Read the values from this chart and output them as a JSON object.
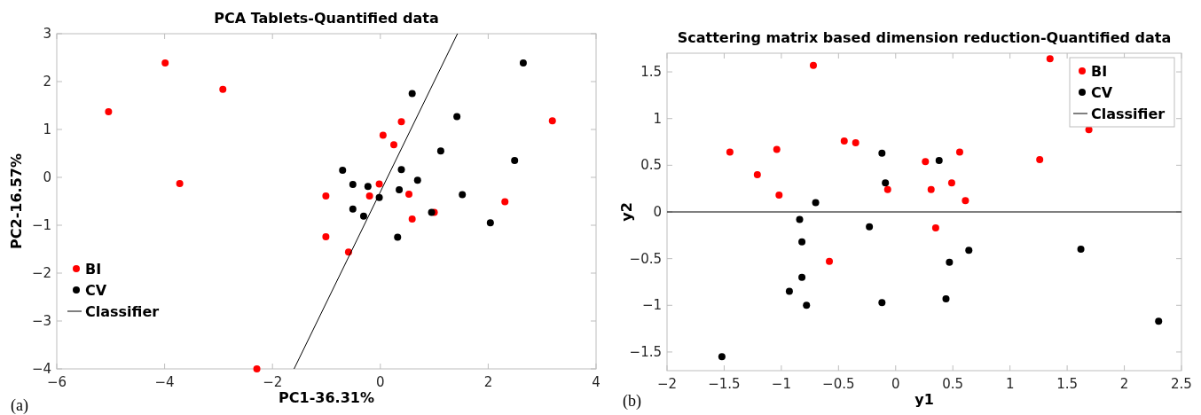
{
  "chart_data": [
    {
      "type": "scatter",
      "title": "PCA Tablets-Quantified data",
      "xlabel": "PC1-36.31%",
      "ylabel": "PC2-16.57%",
      "xlim": [
        -6,
        4
      ],
      "ylim": [
        -4,
        3
      ],
      "xticks": [
        -6,
        -4,
        -2,
        0,
        2,
        4
      ],
      "yticks": [
        -4,
        -3,
        -2,
        -1,
        0,
        1,
        2,
        3
      ],
      "grid": false,
      "legend": "bottom left",
      "annotations": [
        "(a)"
      ],
      "series": [
        {
          "name": "BI",
          "marker": "circle",
          "color": "#ff0000",
          "x": [
            -5.04,
            -3.99,
            -2.92,
            -3.72,
            -1.01,
            -1.01,
            -0.59,
            -2.29,
            -0.2,
            -0.02,
            0.05,
            0.25,
            0.39,
            0.53,
            0.59,
            1.0,
            2.31,
            3.19
          ],
          "values": [
            1.37,
            2.39,
            1.84,
            -0.13,
            -0.39,
            -1.24,
            -1.56,
            -4.0,
            -0.39,
            -0.14,
            0.88,
            0.68,
            1.16,
            -0.35,
            -0.87,
            -0.73,
            -0.51,
            1.18
          ]
        },
        {
          "name": "CV",
          "marker": "circle",
          "color": "#000000",
          "x": [
            0.59,
            2.65,
            1.42,
            1.12,
            2.49,
            -0.7,
            0.39,
            0.69,
            -0.51,
            -0.23,
            -0.02,
            0.35,
            1.52,
            -0.51,
            -0.31,
            0.95,
            2.04,
            0.32
          ],
          "values": [
            1.75,
            2.39,
            1.27,
            0.55,
            0.35,
            0.15,
            0.16,
            -0.06,
            -0.15,
            -0.19,
            -0.42,
            -0.26,
            -0.36,
            -0.66,
            -0.81,
            -0.73,
            -0.95,
            -1.25
          ]
        },
        {
          "name": "Classifier",
          "type": "line",
          "color": "#000000",
          "x": [
            -1.6,
            1.43
          ],
          "values": [
            -4,
            3
          ]
        }
      ]
    },
    {
      "type": "scatter",
      "title": "Scattering matrix based dimension reduction-Quantified data",
      "xlabel": "y1",
      "ylabel": "y2",
      "xlim": [
        -2,
        2.5
      ],
      "ylim": [
        -1.7,
        1.7
      ],
      "xticks": [
        -2,
        -1.5,
        -1,
        -0.5,
        0,
        0.5,
        1,
        1.5,
        2,
        2.5
      ],
      "yticks": [
        -1.5,
        -1,
        -0.5,
        0,
        0.5,
        1,
        1.5
      ],
      "grid": false,
      "legend": "top right",
      "annotations": [
        "(b)"
      ],
      "series": [
        {
          "name": "BI",
          "marker": "circle",
          "color": "#ff0000",
          "x": [
            -1.45,
            -1.21,
            -1.04,
            -1.02,
            -0.72,
            -0.58,
            -0.45,
            -0.35,
            -0.07,
            0.26,
            0.31,
            0.35,
            0.49,
            0.56,
            0.61,
            1.26,
            1.35,
            1.69
          ],
          "values": [
            0.64,
            0.4,
            0.67,
            0.18,
            1.57,
            -0.53,
            0.76,
            0.74,
            0.24,
            0.54,
            0.24,
            -0.17,
            0.31,
            0.64,
            0.12,
            0.56,
            1.64,
            0.88
          ]
        },
        {
          "name": "CV",
          "marker": "circle",
          "color": "#000000",
          "x": [
            -1.52,
            -0.93,
            -0.84,
            -0.82,
            -0.82,
            -0.78,
            -0.7,
            -0.23,
            -0.12,
            -0.12,
            -0.09,
            0.38,
            0.44,
            0.47,
            0.64,
            1.62,
            2.3
          ],
          "values": [
            -1.55,
            -0.85,
            -0.08,
            -0.32,
            -0.7,
            -1.0,
            0.1,
            -0.16,
            0.63,
            -0.97,
            0.31,
            0.55,
            -0.93,
            -0.54,
            -0.41,
            -0.4,
            -1.17
          ]
        },
        {
          "name": "Classifier",
          "type": "line",
          "color": "#000000",
          "x": [
            -2,
            2.5
          ],
          "values": [
            0,
            0
          ]
        }
      ]
    }
  ]
}
